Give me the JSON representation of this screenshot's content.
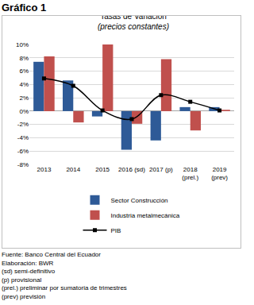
{
  "header": "Gráfico 1",
  "chart_data": {
    "type": "bar",
    "title": "Tasas de Variación",
    "subtitle": "(precios constantes)",
    "categories": [
      "2013",
      "2014",
      "2015",
      "2016 (sd)",
      "2017 (p)",
      "2018 (prel.)",
      "2019 (prev)"
    ],
    "series": [
      {
        "name": "Sector Construcción",
        "type": "bar",
        "color": "#2e5a97",
        "values": [
          7.4,
          4.6,
          -0.8,
          -5.8,
          -4.4,
          0.6,
          0.6
        ]
      },
      {
        "name": "Industria metalmecánica",
        "type": "bar",
        "color": "#c0504d",
        "values": [
          8.2,
          -1.7,
          10.0,
          -1.9,
          7.8,
          -2.9,
          0.2
        ]
      },
      {
        "name": "PIB",
        "type": "line",
        "color": "#000000",
        "marker": "square",
        "line_style": "solid",
        "values": [
          4.9,
          3.8,
          0.1,
          -1.2,
          2.4,
          1.4,
          0.1
        ]
      }
    ],
    "ylim": [
      -8,
      10
    ],
    "yticks": [
      {
        "value": -8,
        "label": "-8%"
      },
      {
        "value": -6,
        "label": "-6%"
      },
      {
        "value": -4,
        "label": "-4%"
      },
      {
        "value": -2,
        "label": "-2%"
      },
      {
        "value": 0,
        "label": "0%"
      },
      {
        "value": 2,
        "label": "2%"
      },
      {
        "value": 4,
        "label": "4%"
      },
      {
        "value": 6,
        "label": "6%"
      },
      {
        "value": 8,
        "label": "8%"
      },
      {
        "value": 10,
        "label": "10%"
      }
    ],
    "grid": true,
    "legend": "bottom"
  },
  "notes": [
    "Fuente: Banco Central del Ecuador",
    "Elaboración: BWR",
    "(sd) semi-definitivo",
    "(p) provisional",
    "(prel.) preliminar por sumatoria de trimestres",
    "(prev) previsión"
  ]
}
